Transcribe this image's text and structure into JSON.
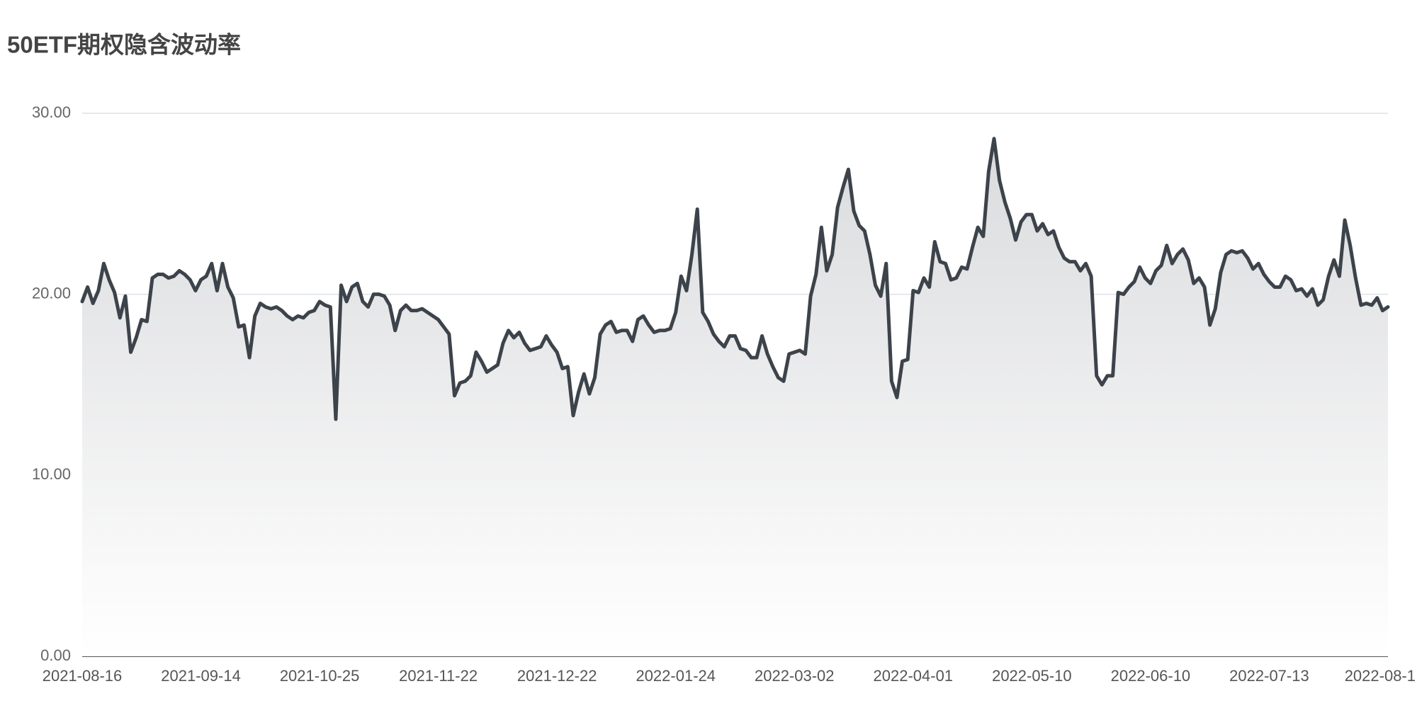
{
  "chart_data": {
    "type": "area_line",
    "title": "50ETF期权隐含波动率",
    "color": "#3d434a",
    "grid": true,
    "ylim": [
      0,
      30
    ],
    "yticks": [
      {
        "value": 0,
        "label": "0.00"
      },
      {
        "value": 10,
        "label": "10.00"
      },
      {
        "value": 20,
        "label": "20.00"
      },
      {
        "value": 30,
        "label": "30.00"
      }
    ],
    "categories": [
      "2021-08-16",
      null,
      null,
      null,
      null,
      null,
      null,
      null,
      null,
      null,
      null,
      null,
      null,
      null,
      null,
      null,
      null,
      null,
      null,
      null,
      null,
      null,
      "2021-09-14",
      null,
      null,
      null,
      null,
      null,
      null,
      null,
      null,
      null,
      null,
      null,
      null,
      null,
      null,
      null,
      null,
      null,
      null,
      null,
      null,
      null,
      "2021-10-25",
      null,
      null,
      null,
      null,
      null,
      null,
      null,
      null,
      null,
      null,
      null,
      null,
      null,
      null,
      null,
      null,
      null,
      null,
      null,
      null,
      null,
      "2021-11-22",
      null,
      null,
      null,
      null,
      null,
      null,
      null,
      null,
      null,
      null,
      null,
      null,
      null,
      null,
      null,
      null,
      null,
      null,
      null,
      null,
      null,
      "2021-12-22",
      null,
      null,
      null,
      null,
      null,
      null,
      null,
      null,
      null,
      null,
      null,
      null,
      null,
      null,
      null,
      null,
      null,
      null,
      null,
      null,
      null,
      "2022-01-24",
      null,
      null,
      null,
      null,
      null,
      null,
      null,
      null,
      null,
      null,
      null,
      null,
      null,
      null,
      null,
      null,
      null,
      null,
      null,
      null,
      null,
      "2022-03-02",
      null,
      null,
      null,
      null,
      null,
      null,
      null,
      null,
      null,
      null,
      null,
      null,
      null,
      null,
      null,
      null,
      null,
      null,
      null,
      null,
      null,
      "2022-04-01",
      null,
      null,
      null,
      null,
      null,
      null,
      null,
      null,
      null,
      null,
      null,
      null,
      null,
      null,
      null,
      null,
      null,
      null,
      null,
      null,
      null,
      "2022-05-10",
      null,
      null,
      null,
      null,
      null,
      null,
      null,
      null,
      null,
      null,
      null,
      null,
      null,
      null,
      null,
      null,
      null,
      null,
      null,
      null,
      null,
      "2022-06-10",
      null,
      null,
      null,
      null,
      null,
      null,
      null,
      null,
      null,
      null,
      null,
      null,
      null,
      null,
      null,
      null,
      null,
      null,
      null,
      null,
      null,
      "2022-07-13",
      null,
      null,
      null,
      null,
      null,
      null,
      null,
      null,
      null,
      null,
      null,
      null,
      null,
      null,
      null,
      null,
      null,
      null,
      null,
      null,
      null,
      "2022-08-1"
    ],
    "values": [
      19.6,
      20.4,
      19.5,
      20.2,
      21.7,
      20.8,
      20.1,
      18.7,
      19.9,
      16.8,
      17.6,
      18.6,
      18.5,
      20.9,
      21.1,
      21.1,
      20.9,
      21.0,
      21.3,
      21.1,
      20.8,
      20.2,
      20.8,
      21.0,
      21.7,
      20.2,
      21.7,
      20.4,
      19.8,
      18.2,
      18.3,
      16.5,
      18.8,
      19.5,
      19.3,
      19.2,
      19.3,
      19.1,
      18.8,
      18.6,
      18.8,
      18.7,
      19.0,
      19.1,
      19.6,
      19.4,
      19.3,
      13.1,
      20.5,
      19.6,
      20.4,
      20.6,
      19.6,
      19.3,
      20.0,
      20.0,
      19.9,
      19.4,
      18.0,
      19.1,
      19.4,
      19.1,
      19.1,
      19.2,
      19.0,
      18.8,
      18.6,
      18.2,
      17.8,
      14.4,
      15.1,
      15.2,
      15.5,
      16.8,
      16.3,
      15.7,
      15.9,
      16.1,
      17.3,
      18.0,
      17.6,
      17.9,
      17.3,
      16.9,
      17.0,
      17.1,
      17.7,
      17.2,
      16.8,
      15.9,
      16.0,
      13.3,
      14.6,
      15.6,
      14.5,
      15.4,
      17.8,
      18.3,
      18.5,
      17.9,
      18.0,
      18.0,
      17.4,
      18.6,
      18.8,
      18.3,
      17.9,
      18.0,
      18.0,
      18.1,
      19.0,
      21.0,
      20.2,
      22.2,
      24.7,
      19.0,
      18.5,
      17.8,
      17.4,
      17.1,
      17.7,
      17.7,
      17.0,
      16.9,
      16.5,
      16.5,
      17.7,
      16.7,
      16.0,
      15.4,
      15.2,
      16.7,
      16.8,
      16.9,
      16.7,
      19.9,
      21.1,
      23.7,
      21.3,
      22.2,
      24.8,
      25.9,
      26.9,
      24.6,
      23.8,
      23.5,
      22.2,
      20.5,
      19.9,
      21.7,
      15.2,
      14.3,
      16.3,
      16.4,
      20.2,
      20.1,
      20.9,
      20.4,
      22.9,
      21.8,
      21.7,
      20.8,
      20.9,
      21.5,
      21.4,
      22.6,
      23.7,
      23.2,
      26.8,
      28.6,
      26.3,
      25.1,
      24.2,
      23.0,
      24.0,
      24.4,
      24.4,
      23.5,
      23.9,
      23.3,
      23.5,
      22.6,
      22.0,
      21.8,
      21.8,
      21.3,
      21.7,
      21.0,
      15.5,
      15.0,
      15.5,
      15.5,
      20.1,
      20.0,
      20.4,
      20.7,
      21.5,
      20.9,
      20.6,
      21.3,
      21.6,
      22.7,
      21.7,
      22.2,
      22.5,
      21.9,
      20.6,
      20.9,
      20.4,
      18.3,
      19.2,
      21.2,
      22.2,
      22.4,
      22.3,
      22.4,
      22.0,
      21.4,
      21.7,
      21.1,
      20.7,
      20.4,
      20.4,
      21.0,
      20.8,
      20.2,
      20.3,
      19.9,
      20.3,
      19.4,
      19.7,
      21.0,
      21.9,
      21.0,
      24.1,
      22.7,
      20.9,
      19.4,
      19.5,
      19.4,
      19.8,
      19.1,
      19.3
    ]
  }
}
